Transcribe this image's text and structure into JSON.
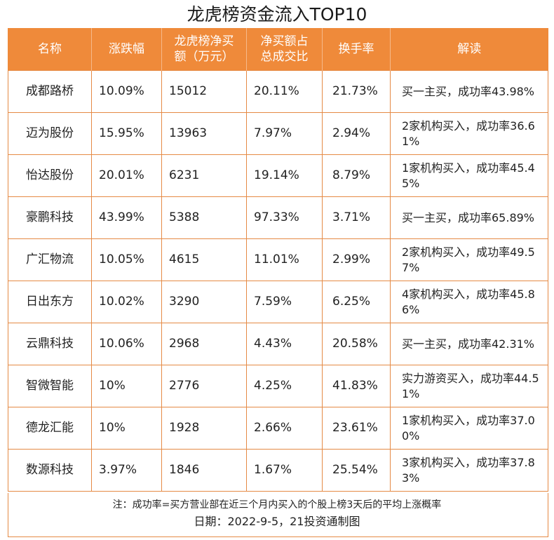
{
  "title": "龙虎榜资金流入TOP10",
  "colors": {
    "header_bg": "#ef8a3a",
    "border": "#e58a45",
    "header_text": "#ffffff"
  },
  "headers": {
    "name": "名称",
    "change": "涨跌幅",
    "net_buy_line1": "龙虎榜净买",
    "net_buy_line2": "额（万元）",
    "ratio_line1": "净买额占",
    "ratio_line2": "总成交比",
    "turnover": "换手率",
    "note": "解读"
  },
  "rows": [
    {
      "name": "成都路桥",
      "change": "10.09%",
      "net_buy": "15012",
      "ratio": "20.11%",
      "turnover": "21.73%",
      "note": "买一主买，成功率43.98%"
    },
    {
      "name": "迈为股份",
      "change": "15.95%",
      "net_buy": "13963",
      "ratio": "7.97%",
      "turnover": "2.94%",
      "note": "2家机构买入，成功率36.61%"
    },
    {
      "name": "怡达股份",
      "change": "20.01%",
      "net_buy": "6231",
      "ratio": "19.14%",
      "turnover": "8.79%",
      "note": "1家机构买入，成功率45.45%"
    },
    {
      "name": "豪鹏科技",
      "change": "43.99%",
      "net_buy": "5388",
      "ratio": "97.33%",
      "turnover": "3.71%",
      "note": "买一主买，成功率65.89%"
    },
    {
      "name": "广汇物流",
      "change": "10.05%",
      "net_buy": "4615",
      "ratio": "11.01%",
      "turnover": "2.99%",
      "note": "2家机构买入，成功率49.57%"
    },
    {
      "name": "日出东方",
      "change": "10.02%",
      "net_buy": "3290",
      "ratio": "7.59%",
      "turnover": "6.25%",
      "note": "4家机构买入，成功率45.86%"
    },
    {
      "name": "云鼎科技",
      "change": "10.06%",
      "net_buy": "2968",
      "ratio": "4.43%",
      "turnover": "20.58%",
      "note": "买一主买，成功率42.31%"
    },
    {
      "name": "智微智能",
      "change": "10%",
      "net_buy": "2776",
      "ratio": "4.25%",
      "turnover": "41.83%",
      "note": "实力游资买入，成功率44.51%"
    },
    {
      "name": "德龙汇能",
      "change": "10%",
      "net_buy": "1928",
      "ratio": "2.66%",
      "turnover": "23.61%",
      "note": "1家机构买入，成功率37.00%"
    },
    {
      "name": "数源科技",
      "change": "3.97%",
      "net_buy": "1846",
      "ratio": "1.67%",
      "turnover": "25.54%",
      "note": "3家机构买入，成功率37.83%"
    }
  ],
  "footer": {
    "note": "注：成功率=买方营业部在近三个月内买入的个股上榜3天后的平均上涨概率",
    "date_source": "日期：2022-9-5，21投资通制图"
  }
}
